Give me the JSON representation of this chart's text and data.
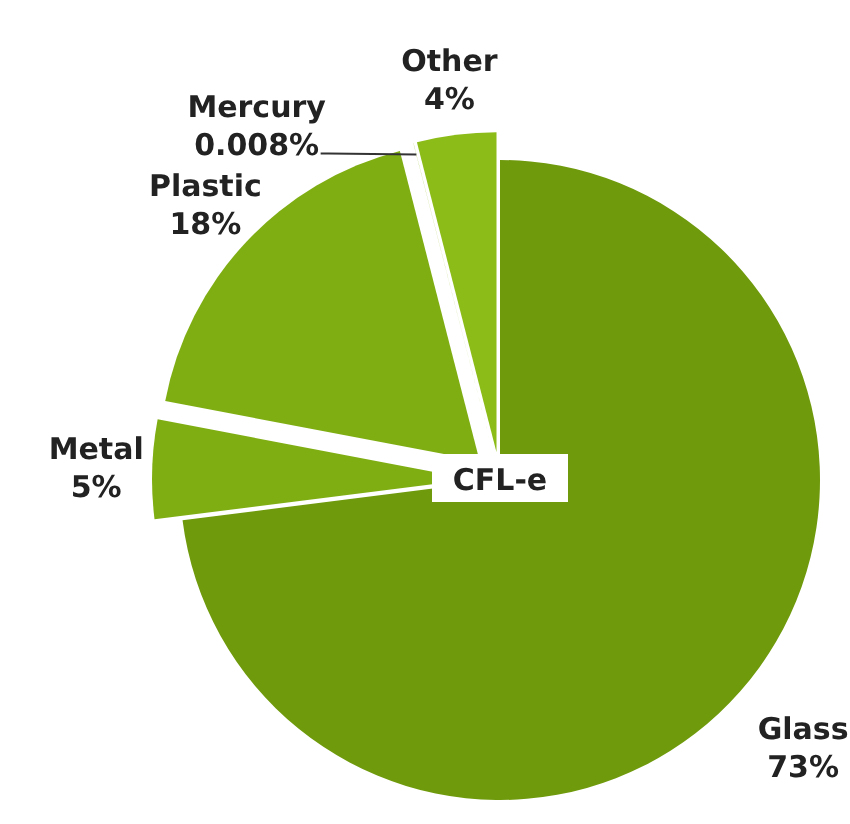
{
  "chart_data": {
    "type": "pie",
    "categories": [
      "Glass",
      "Metal",
      "Plastic",
      "Mercury",
      "Other"
    ],
    "values": [
      73,
      5,
      18,
      0.008,
      4
    ],
    "colors": [
      "#6f9a0c",
      "#7fae12",
      "#7fae12",
      "#8cbc18",
      "#8cbc18"
    ],
    "annotations": [
      "CFL-e"
    ],
    "value_labels": [
      "73%",
      "5%",
      "18%",
      "0.008%",
      "4%"
    ]
  }
}
